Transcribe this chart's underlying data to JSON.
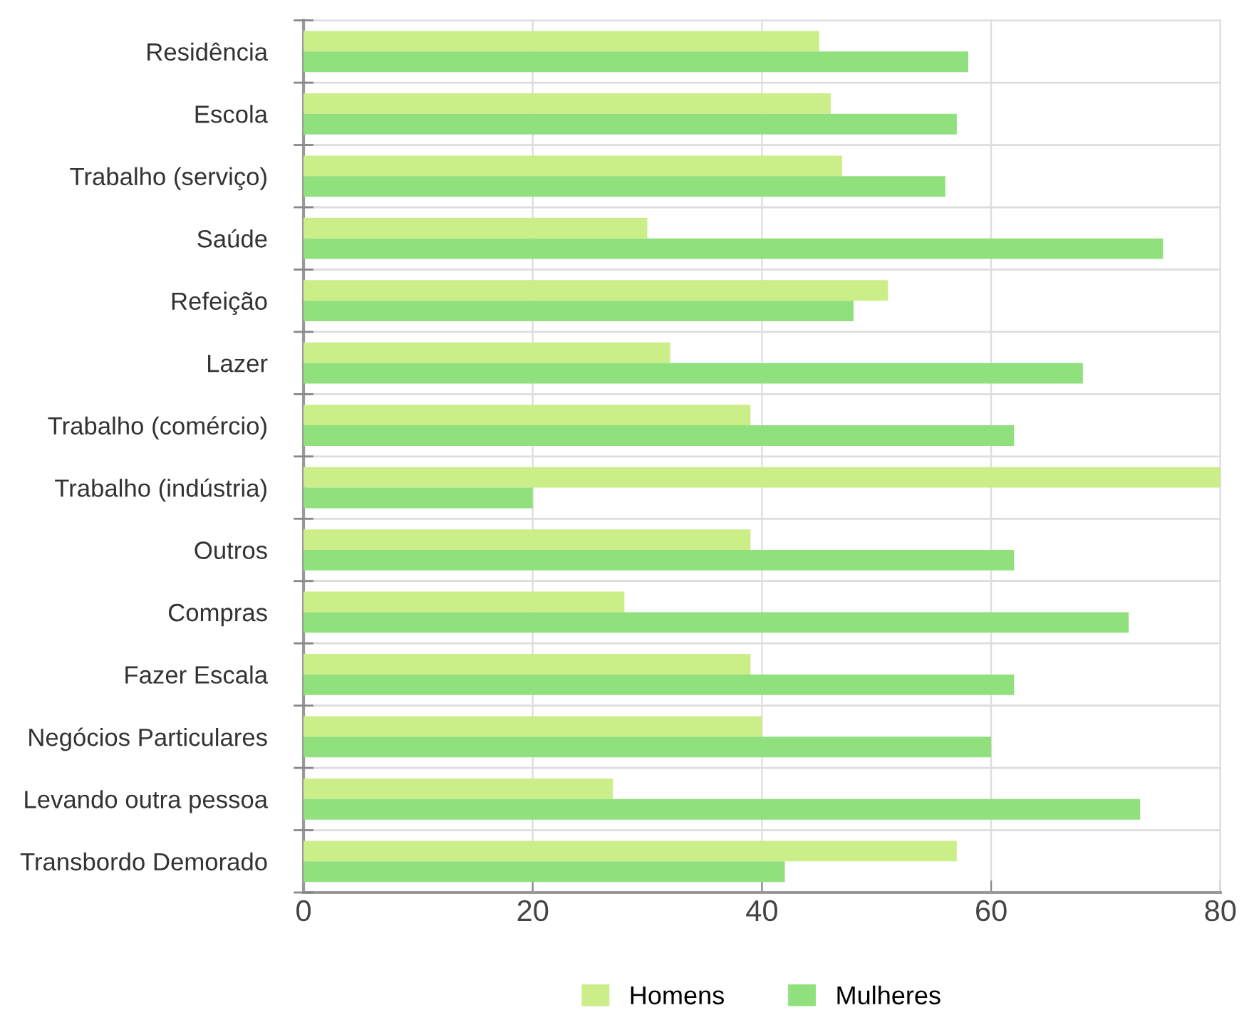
{
  "chart_data": {
    "type": "bar",
    "orientation": "horizontal",
    "categories": [
      "Residência",
      "Escola",
      "Trabalho (serviço)",
      "Saúde",
      "Refeição",
      "Lazer",
      "Trabalho (comércio)",
      "Trabalho (indústria)",
      "Outros",
      "Compras",
      "Fazer Escala",
      "Negócios Particulares",
      "Levando outra pessoa",
      "Transbordo Demorado"
    ],
    "series": [
      {
        "name": "Homens",
        "color": "#ccee88",
        "values": [
          45,
          46,
          47,
          30,
          51,
          32,
          39,
          80,
          39,
          28,
          39,
          40,
          27,
          57
        ]
      },
      {
        "name": "Mulheres",
        "color": "#90e07e",
        "values": [
          58,
          57,
          56,
          75,
          48,
          68,
          62,
          20,
          62,
          72,
          62,
          60,
          73,
          42
        ]
      }
    ],
    "xlim": [
      0,
      80
    ],
    "xticks": [
      0,
      20,
      40,
      60,
      80
    ],
    "grid": true,
    "legend": "bottom"
  }
}
